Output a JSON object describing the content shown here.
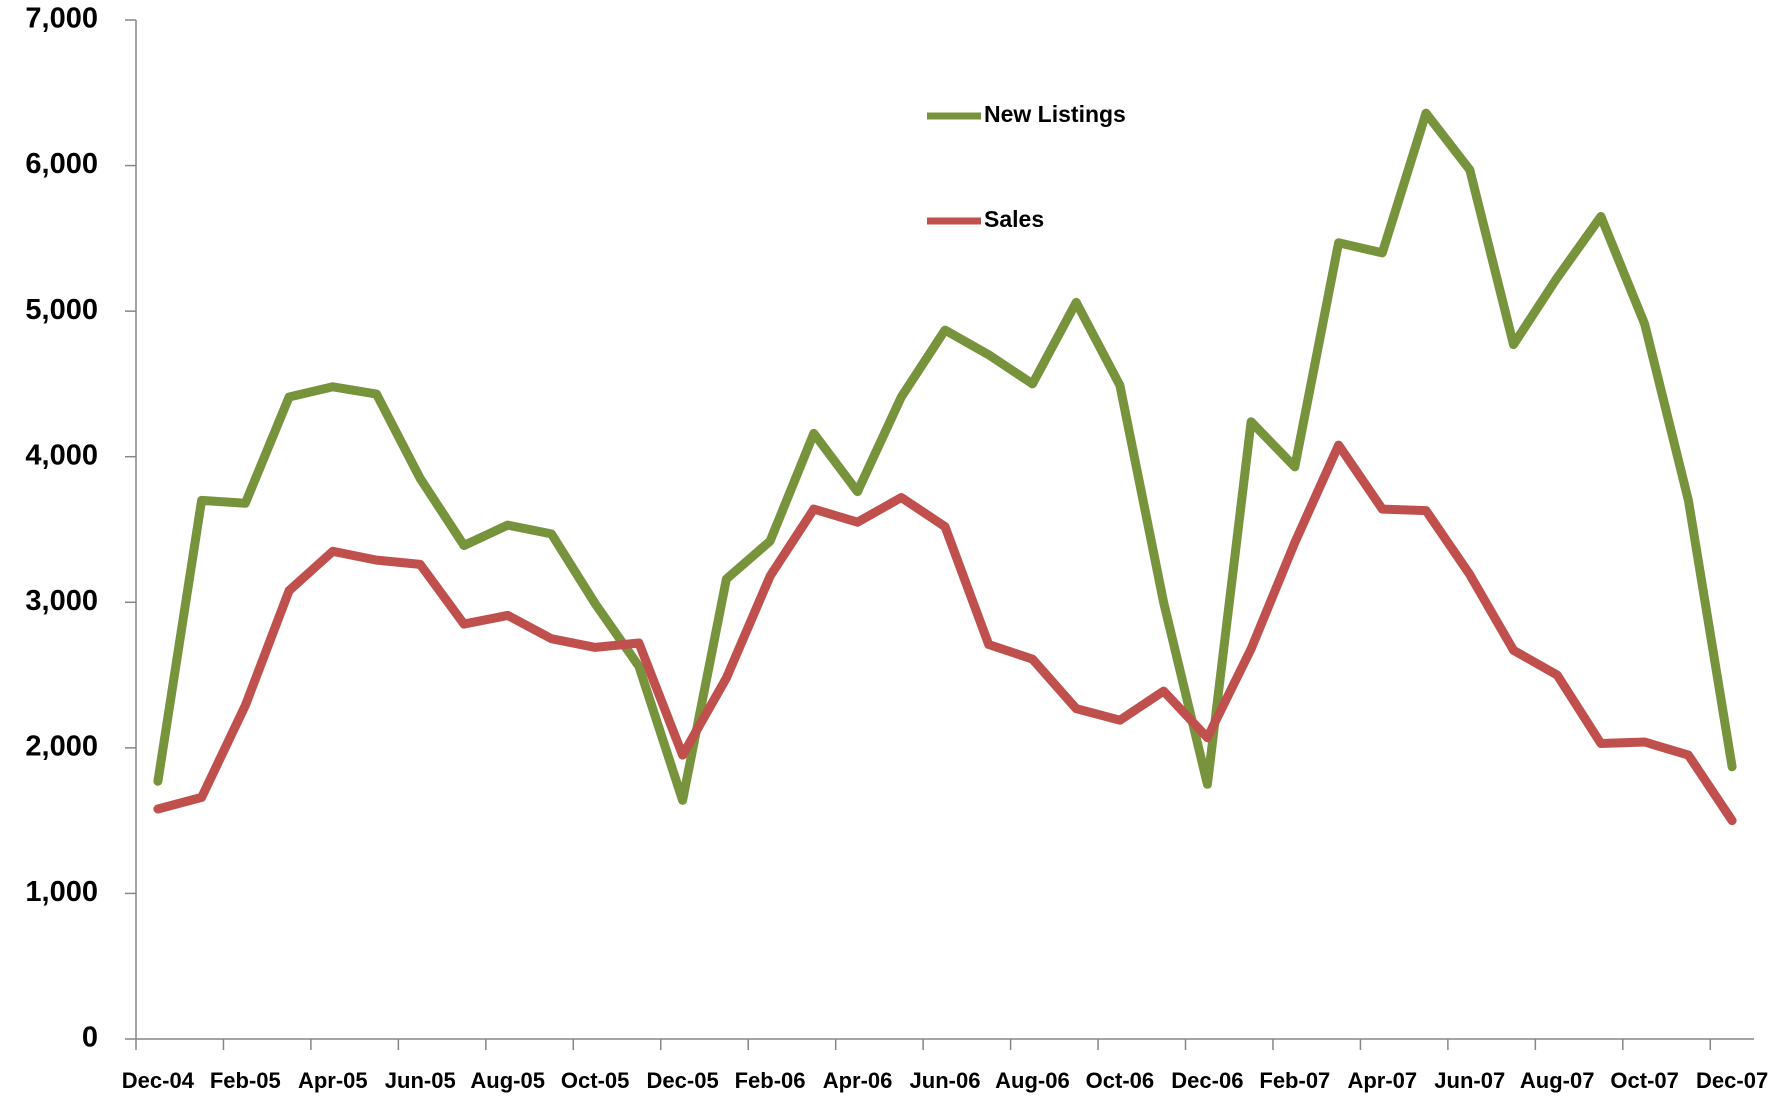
{
  "chart_data": {
    "type": "line",
    "categories": [
      "Dec-04",
      null,
      "Feb-05",
      null,
      "Apr-05",
      null,
      "Jun-05",
      null,
      "Aug-05",
      null,
      "Oct-05",
      null,
      "Dec-05",
      null,
      "Feb-06",
      null,
      "Apr-06",
      null,
      "Jun-06",
      null,
      "Aug-06",
      null,
      "Oct-06",
      null,
      "Dec-06",
      null,
      "Feb-07",
      null,
      "Apr-07",
      null,
      "Jun-07",
      null,
      "Aug-07",
      null,
      "Oct-07",
      null,
      "Dec-07"
    ],
    "series": [
      {
        "name": "New Listings",
        "color": "#77933c",
        "values": [
          1770,
          3700,
          3680,
          4410,
          4480,
          4430,
          3850,
          3390,
          3530,
          3470,
          2990,
          2560,
          1640,
          3160,
          3420,
          4160,
          3760,
          4410,
          4870,
          4700,
          4500,
          5060,
          4490,
          3000,
          1750,
          4240,
          3930,
          5470,
          5400,
          6360,
          5970,
          4770,
          5230,
          5650,
          4910,
          3700,
          1870
        ]
      },
      {
        "name": "Sales",
        "color": "#c0504d",
        "values": [
          1580,
          1660,
          2290,
          3080,
          3350,
          3290,
          3260,
          2850,
          2910,
          2750,
          2690,
          2720,
          1950,
          2480,
          3180,
          3640,
          3550,
          3720,
          3520,
          2710,
          2610,
          2270,
          2190,
          2390,
          2070,
          2680,
          3410,
          4080,
          3640,
          3630,
          3190,
          2670,
          2500,
          2030,
          2040,
          1950,
          1500
        ]
      }
    ],
    "ylim": [
      0,
      7000
    ],
    "yticks": [
      0,
      {
        "value": 1000,
        "label": "1,000"
      },
      {
        "value": 2000,
        "label": "2,000"
      },
      {
        "value": 3000,
        "label": "3,000"
      },
      {
        "value": 4000,
        "label": "4,000"
      },
      {
        "value": 5000,
        "label": "5,000"
      },
      {
        "value": 6000,
        "label": "6,000"
      },
      {
        "value": 7000,
        "label": "7,000"
      }
    ],
    "grid": false
  }
}
